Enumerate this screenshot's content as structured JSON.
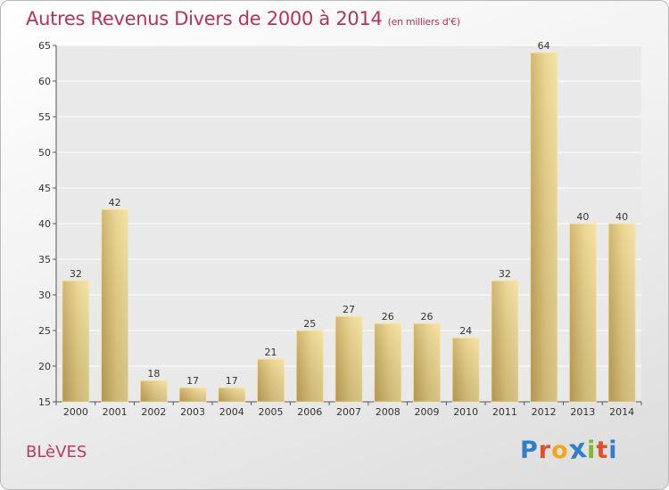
{
  "chart_data": {
    "type": "bar",
    "title": "Autres Revenus Divers de 2000 à 2014",
    "subtitle": "(en milliers d'€)",
    "categories": [
      "2000",
      "2001",
      "2002",
      "2003",
      "2004",
      "2005",
      "2006",
      "2007",
      "2008",
      "2009",
      "2010",
      "2011",
      "2012",
      "2013",
      "2014"
    ],
    "values": [
      32,
      42,
      18,
      17,
      17,
      21,
      25,
      27,
      26,
      26,
      24,
      32,
      64,
      40,
      40
    ],
    "ylim": [
      15,
      65
    ],
    "yticks": [
      15,
      20,
      25,
      30,
      35,
      40,
      45,
      50,
      55,
      60,
      65
    ],
    "grid": true,
    "bar_color": "#e8cf82",
    "grid_color": "#ffffff"
  },
  "footer": {
    "location": "BLèVES",
    "logo_letters": [
      "P",
      "r",
      "o",
      "x",
      "i",
      "t",
      "i"
    ],
    "logo_colors": [
      "#2f7fc8",
      "#e0502a",
      "#f2a71b",
      "#2f7fc8",
      "#7dbb2a",
      "#e0502a",
      "#2f7fc8"
    ]
  }
}
